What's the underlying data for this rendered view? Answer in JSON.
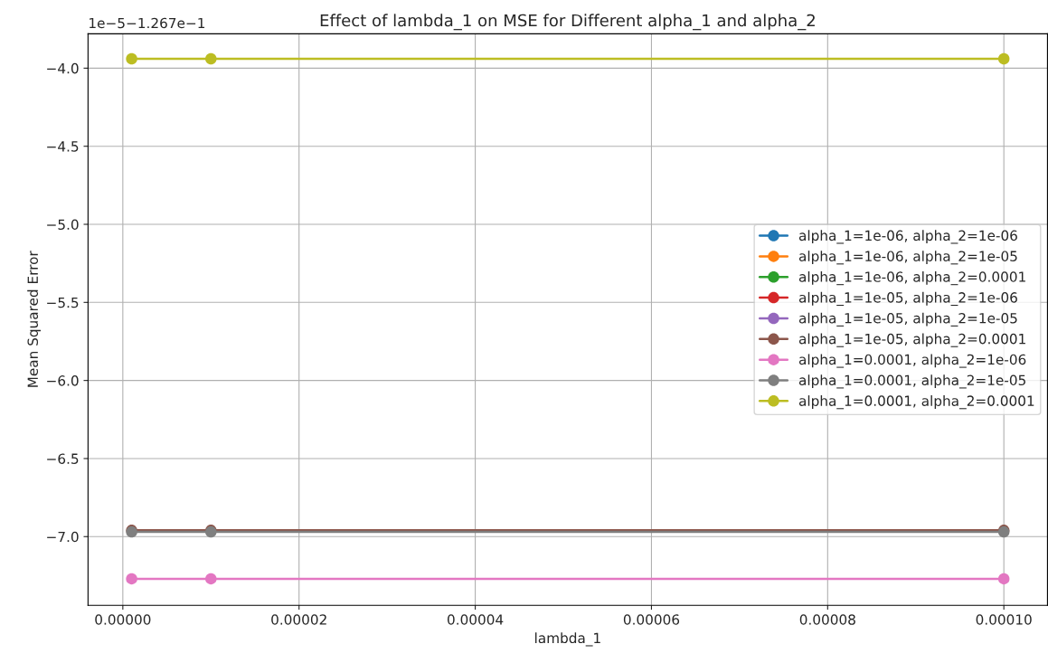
{
  "chart_data": {
    "type": "line",
    "title": "Effect of lambda_1 on MSE for Different alpha_1 and alpha_2",
    "xlabel": "lambda_1",
    "ylabel": "Mean Squared Error",
    "annotations": [
      "1e−5−1.267e−1"
    ],
    "x": [
      1e-06,
      1e-05,
      0.0001
    ],
    "series": [
      {
        "name": "alpha_1=1e-06, alpha_2=1e-06",
        "color": "#1f77b4",
        "values": [
          null,
          null,
          null
        ]
      },
      {
        "name": "alpha_1=1e-06, alpha_2=1e-05",
        "color": "#ff7f0e",
        "values": [
          null,
          null,
          null
        ]
      },
      {
        "name": "alpha_1=1e-06, alpha_2=0.0001",
        "color": "#2ca02c",
        "values": [
          null,
          null,
          null
        ]
      },
      {
        "name": "alpha_1=1e-05, alpha_2=1e-06",
        "color": "#d62728",
        "values": [
          null,
          null,
          null
        ]
      },
      {
        "name": "alpha_1=1e-05, alpha_2=1e-05",
        "color": "#9467bd",
        "values": [
          null,
          null,
          null
        ]
      },
      {
        "name": "alpha_1=1e-05, alpha_2=0.0001",
        "color": "#8c564b",
        "values": [
          -6.96,
          -6.96,
          -6.96
        ]
      },
      {
        "name": "alpha_1=0.0001, alpha_2=1e-06",
        "color": "#e377c2",
        "values": [
          -7.27,
          -7.27,
          -7.27
        ]
      },
      {
        "name": "alpha_1=0.0001, alpha_2=1e-05",
        "color": "#7f7f7f",
        "values": [
          -6.97,
          -6.97,
          -6.97
        ]
      },
      {
        "name": "alpha_1=0.0001, alpha_2=0.0001",
        "color": "#bcbd22",
        "values": [
          -3.94,
          -3.94,
          -3.94
        ]
      }
    ],
    "xlim": [
      -3.95e-06,
      0.00010495
    ],
    "xticks": [
      {
        "value": 0,
        "label": "0.00000"
      },
      {
        "value": 2e-05,
        "label": "0.00002"
      },
      {
        "value": 4e-05,
        "label": "0.00004"
      },
      {
        "value": 6e-05,
        "label": "0.00006"
      },
      {
        "value": 8e-05,
        "label": "0.00008"
      },
      {
        "value": 0.0001,
        "label": "0.00010"
      }
    ],
    "ylim": [
      -7.44,
      -3.78
    ],
    "yticks": [
      {
        "value": -4.0,
        "label": "−4.0"
      },
      {
        "value": -4.5,
        "label": "−4.5"
      },
      {
        "value": -5.0,
        "label": "−5.0"
      },
      {
        "value": -5.5,
        "label": "−5.5"
      },
      {
        "value": -6.0,
        "label": "−6.0"
      },
      {
        "value": -6.5,
        "label": "−6.5"
      },
      {
        "value": -7.0,
        "label": "−7.0"
      }
    ],
    "grid": true,
    "legend": "right",
    "marker": "circle",
    "line_style": "solid"
  }
}
